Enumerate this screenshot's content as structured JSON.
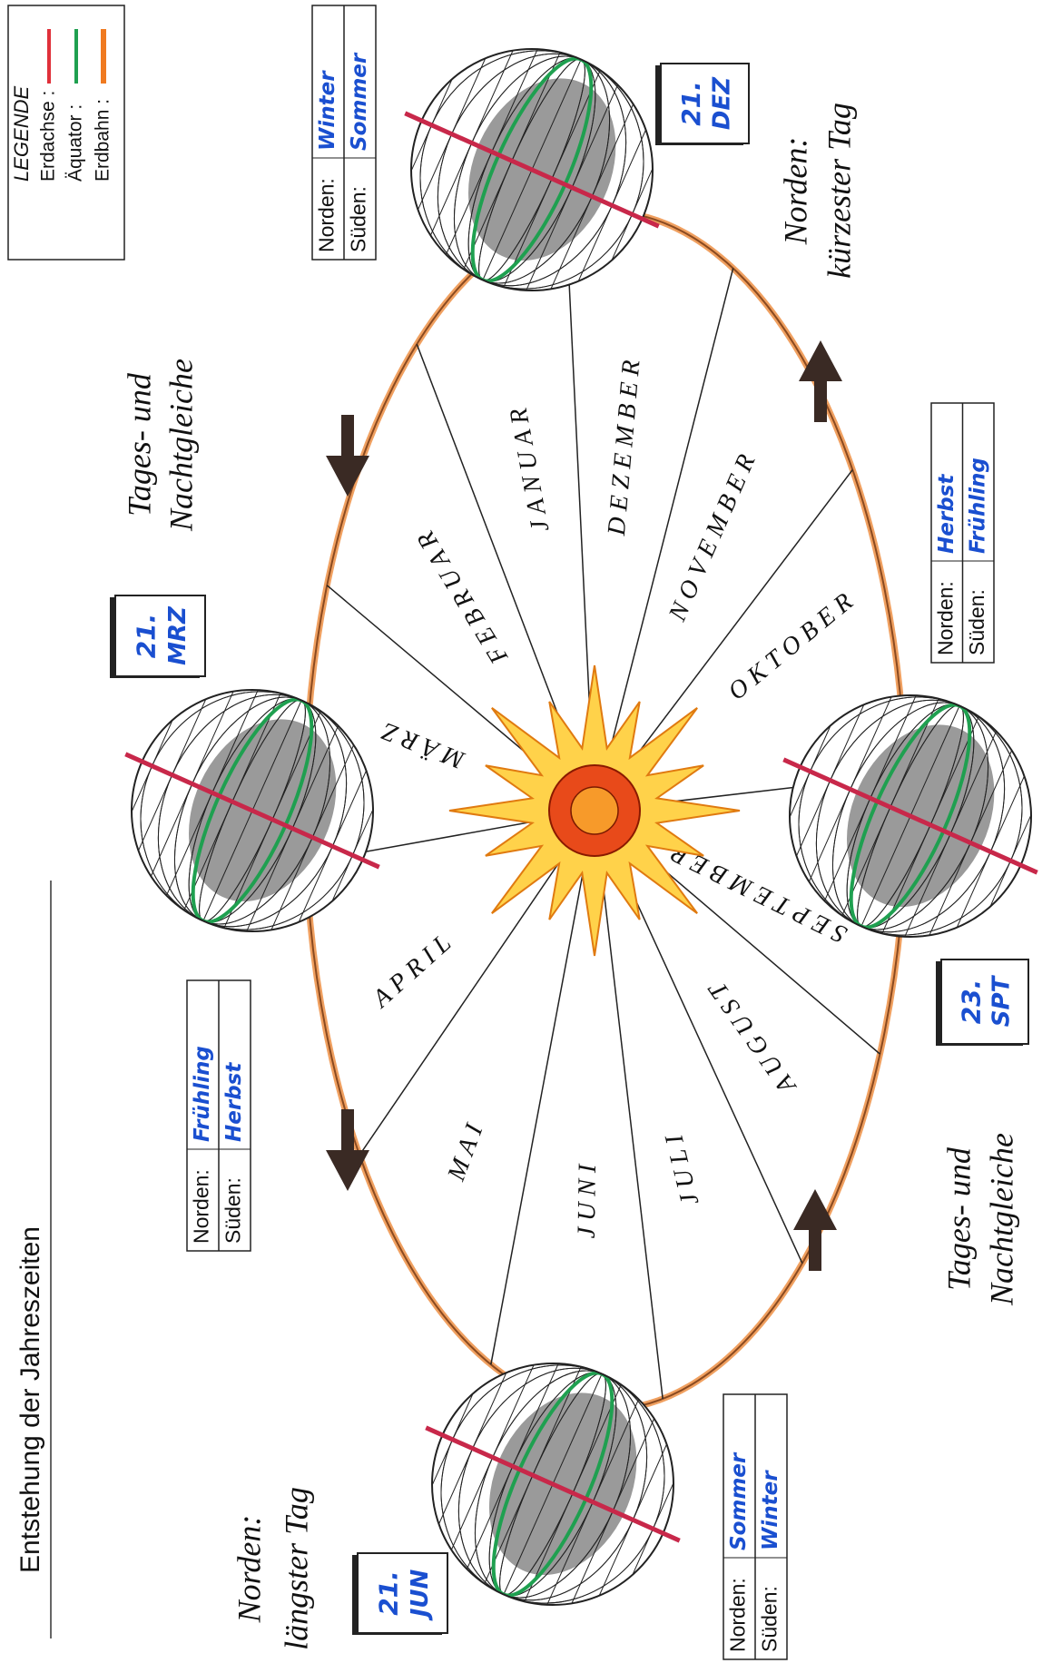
{
  "title": "Entstehung der Jahreszeiten",
  "legend": {
    "title": "LEGENDE",
    "items": [
      {
        "label": "Erdachse :"
      },
      {
        "label": "Äquator :"
      },
      {
        "label": "Erdbahn :"
      }
    ]
  },
  "months": [
    "JANUAR",
    "FEBRUAR",
    "MÄRZ",
    "APRIL",
    "MAI",
    "JUNI",
    "JULI",
    "AUGUST",
    "SEPTEMBER",
    "OKTOBER",
    "NOVEMBER",
    "DEZEMBER"
  ],
  "positions": [
    {
      "date": {
        "day": "21.",
        "month": "DEZ"
      },
      "north_label": "Norden:",
      "north": "Winter",
      "south_label": "Süden:",
      "south": "Sommer"
    },
    {
      "date": {
        "day": "21.",
        "month": "MRZ"
      },
      "north_label": "Norden:",
      "north": "Frühling",
      "south_label": "Süden:",
      "south": "Herbst"
    },
    {
      "date": {
        "day": "21.",
        "month": "JUN"
      },
      "north_label": "Norden:",
      "north": "Sommer",
      "south_label": "Süden:",
      "south": "Winter"
    },
    {
      "date": {
        "day": "23.",
        "month": "SPT"
      },
      "north_label": "Norden:",
      "north": "Herbst",
      "south_label": "Süden:",
      "south": "Frühling"
    }
  ],
  "annotations": [
    {
      "lines": [
        "Norden:",
        "kürzester Tag"
      ]
    },
    {
      "lines": [
        "Tages- und",
        "Nachtgleiche"
      ]
    },
    {
      "lines": [
        "Tages- und",
        "Nachtgleiche"
      ]
    },
    {
      "lines": [
        "Norden:",
        "längster Tag"
      ]
    }
  ]
}
